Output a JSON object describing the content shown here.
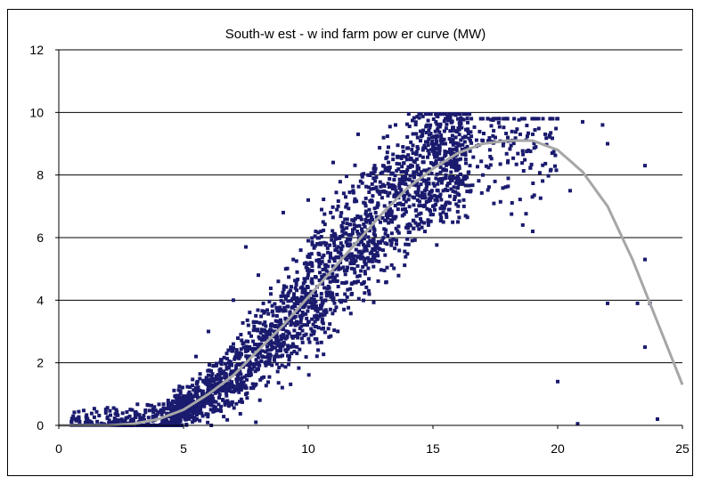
{
  "chart_data": {
    "type": "scatter",
    "title": "South-w est - w ind farm pow er curve (MW)",
    "xlabel": "",
    "ylabel": "",
    "xlim": [
      0,
      25
    ],
    "ylim": [
      0,
      12
    ],
    "x_ticks": [
      "0",
      "5",
      "10",
      "15",
      "20",
      "25"
    ],
    "y_ticks": [
      "0",
      "2",
      "4",
      "6",
      "8",
      "10",
      "12"
    ],
    "grid": "horizontal major gridlines",
    "legend": "none",
    "colors": {
      "points": "#1a1a6e",
      "fit_line": "#a6a6a6",
      "grid": "#000000"
    },
    "series": [
      {
        "kind": "scatter",
        "description_points_estimated": true,
        "points": [
          [
            0.6,
            0.0
          ],
          [
            1.2,
            0.0
          ],
          [
            1.8,
            0.0
          ],
          [
            2.2,
            0.02
          ],
          [
            2.6,
            0.05
          ],
          [
            3.0,
            0.1
          ],
          [
            3.3,
            0.15
          ],
          [
            3.6,
            0.25
          ],
          [
            3.9,
            0.3
          ],
          [
            4.2,
            0.45
          ],
          [
            4.5,
            0.5
          ],
          [
            4.8,
            0.7
          ],
          [
            5.0,
            0.8
          ],
          [
            5.2,
            1.0
          ],
          [
            5.5,
            1.2
          ],
          [
            5.8,
            1.4
          ],
          [
            6.0,
            1.6
          ],
          [
            6.2,
            1.9
          ],
          [
            6.5,
            2.1
          ],
          [
            6.8,
            2.4
          ],
          [
            7.0,
            2.6
          ],
          [
            7.3,
            2.9
          ],
          [
            7.6,
            3.2
          ],
          [
            7.9,
            3.5
          ],
          [
            8.2,
            3.9
          ],
          [
            8.5,
            4.2
          ],
          [
            8.8,
            4.6
          ],
          [
            9.1,
            5.0
          ],
          [
            9.4,
            5.3
          ],
          [
            9.7,
            5.6
          ],
          [
            10.0,
            5.9
          ],
          [
            10.3,
            6.2
          ],
          [
            10.6,
            6.5
          ],
          [
            10.9,
            6.8
          ],
          [
            11.2,
            7.0
          ],
          [
            11.5,
            7.3
          ],
          [
            11.8,
            7.5
          ],
          [
            12.1,
            7.8
          ],
          [
            12.4,
            8.0
          ],
          [
            12.7,
            8.2
          ],
          [
            13.0,
            8.3
          ],
          [
            13.4,
            8.5
          ],
          [
            13.8,
            8.6
          ],
          [
            14.2,
            8.7
          ],
          [
            14.6,
            8.8
          ],
          [
            15.0,
            8.9
          ],
          [
            15.5,
            9.0
          ],
          [
            16.0,
            9.0
          ],
          [
            16.5,
            9.1
          ],
          [
            17.0,
            9.1
          ],
          [
            17.5,
            9.2
          ],
          [
            18.0,
            9.2
          ],
          [
            18.5,
            9.3
          ],
          [
            19.0,
            9.3
          ],
          [
            19.5,
            9.3
          ],
          [
            20.0,
            9.8
          ],
          [
            21.0,
            9.7
          ],
          [
            21.8,
            9.6
          ],
          [
            22.0,
            9.0
          ],
          [
            23.5,
            8.3
          ],
          [
            20.5,
            7.5
          ],
          [
            19.0,
            6.2
          ],
          [
            18.6,
            6.4
          ],
          [
            22.0,
            3.9
          ],
          [
            23.2,
            3.9
          ],
          [
            23.7,
            3.9
          ],
          [
            23.5,
            2.5
          ],
          [
            20.0,
            1.4
          ],
          [
            24.0,
            0.2
          ],
          [
            20.8,
            0.05
          ],
          [
            23.5,
            5.3
          ],
          [
            7.9,
            0.1
          ],
          [
            4.5,
            0.0
          ],
          [
            6.5,
            0.6
          ],
          [
            7.5,
            1.2
          ],
          [
            8.0,
            1.8
          ],
          [
            9.0,
            2.8
          ],
          [
            10.0,
            3.3
          ],
          [
            11.0,
            4.0
          ],
          [
            12.0,
            4.6
          ],
          [
            13.0,
            5.6
          ],
          [
            14.0,
            6.3
          ],
          [
            15.0,
            7.0
          ],
          [
            16.0,
            7.6
          ],
          [
            17.0,
            8.0
          ],
          [
            18.0,
            8.4
          ],
          [
            5.5,
            2.2
          ],
          [
            6.0,
            3.0
          ],
          [
            7.0,
            4.0
          ],
          [
            7.5,
            5.7
          ],
          [
            8.0,
            4.8
          ],
          [
            9.0,
            6.8
          ],
          [
            10.0,
            7.2
          ],
          [
            11.0,
            8.4
          ],
          [
            12.0,
            9.3
          ],
          [
            13.5,
            9.6
          ],
          [
            15.5,
            9.8
          ],
          [
            17.5,
            9.8
          ],
          [
            16.0,
            6.5
          ],
          [
            14.5,
            6.6
          ]
        ]
      },
      {
        "kind": "line",
        "x": [
          0,
          1,
          2,
          3,
          4,
          5,
          6,
          7,
          8,
          9,
          10,
          11,
          12,
          13,
          14,
          15,
          16,
          17,
          18,
          19,
          20,
          21,
          22,
          23,
          24,
          25
        ],
        "y": [
          0.0,
          0.0,
          0.0,
          0.05,
          0.2,
          0.5,
          1.0,
          1.6,
          2.4,
          3.2,
          4.1,
          5.0,
          5.9,
          6.8,
          7.6,
          8.2,
          8.7,
          9.0,
          9.1,
          9.1,
          8.8,
          8.1,
          7.0,
          5.3,
          3.3,
          1.3
        ]
      }
    ]
  }
}
